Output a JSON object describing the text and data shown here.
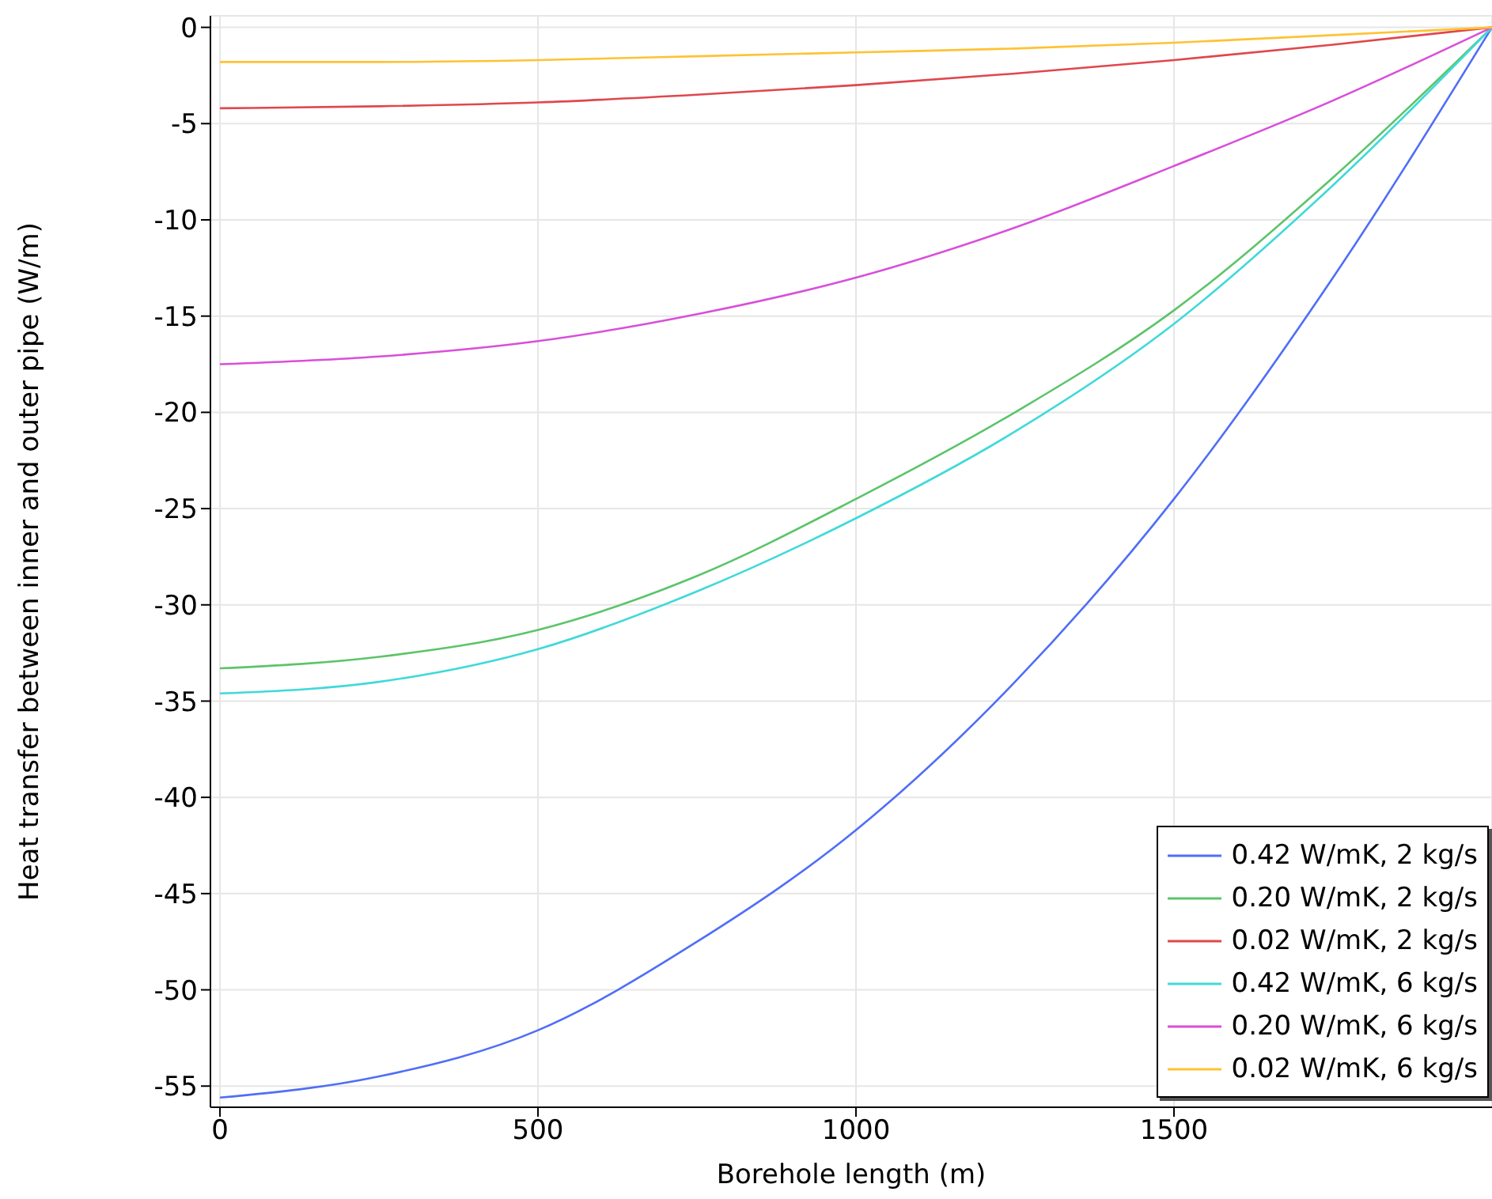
{
  "chart_data": {
    "type": "line",
    "xlabel": "Borehole length (m)",
    "ylabel": "Heat transfer between inner and outer pipe (W/m)",
    "x": [
      0,
      250,
      500,
      750,
      1000,
      1250,
      1500,
      1750,
      2000
    ],
    "series": [
      {
        "name": "0.42 W/mK, 2 kg/s",
        "color": "#4f6ef7",
        "values": [
          -55.6,
          -54.5,
          -52.1,
          -47.5,
          -41.7,
          -34,
          -24.5,
          -13,
          0
        ]
      },
      {
        "name": "0.20 W/mK, 2 kg/s",
        "color": "#5cc46a",
        "values": [
          -33.3,
          -32.7,
          -31.3,
          -28.5,
          -24.5,
          -20,
          -14.7,
          -7.8,
          0
        ]
      },
      {
        "name": "0.02 W/mK, 2 kg/s",
        "color": "#e0474c",
        "values": [
          -4.2,
          -4.1,
          -3.9,
          -3.5,
          -3,
          -2.4,
          -1.7,
          -0.9,
          0
        ]
      },
      {
        "name": "0.42 W/mK, 6 kg/s",
        "color": "#40d9d9",
        "values": [
          -34.6,
          -34,
          -32.3,
          -29.3,
          -25.5,
          -21,
          -15.4,
          -8.2,
          0
        ]
      },
      {
        "name": "0.20 W/mK, 6 kg/s",
        "color": "#d94fd9",
        "values": [
          -17.5,
          -17.1,
          -16.3,
          -14.9,
          -13,
          -10.4,
          -7.2,
          -3.8,
          0
        ]
      },
      {
        "name": "0.02 W/mK, 6 kg/s",
        "color": "#ffc233",
        "values": [
          -1.8,
          -1.8,
          -1.7,
          -1.5,
          -1.3,
          -1.1,
          -0.8,
          -0.4,
          0
        ]
      }
    ],
    "xlim": [
      -15,
      2000
    ],
    "xticks": [
      0,
      500,
      1000,
      1500
    ],
    "ylim": [
      -56.1,
      0.6
    ],
    "yticks": [
      0,
      -5,
      -10,
      -15,
      -20,
      -25,
      -30,
      -35,
      -40,
      -45,
      -50,
      -55
    ],
    "grid": true,
    "legend": "bottom right",
    "marker": "none",
    "line_style": "solid"
  }
}
